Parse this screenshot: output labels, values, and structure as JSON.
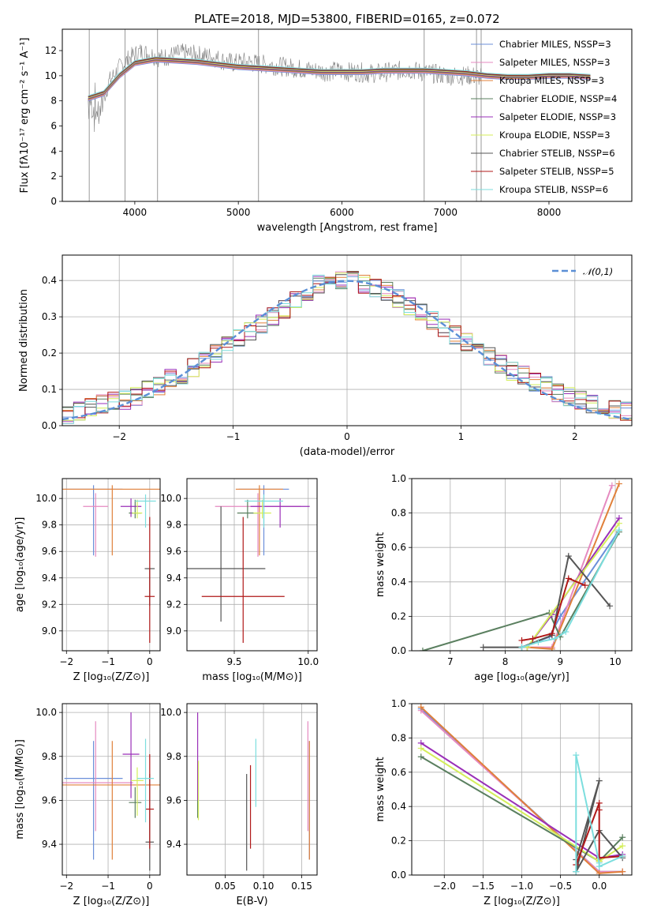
{
  "chart_data": [
    {
      "id": "spectrum",
      "type": "line",
      "title": "PLATE=2018, MJD=53800, FIBERID=0165, z=0.072",
      "xlabel": "wavelength [Angstrom, rest frame]",
      "ylabel": "Flux [fλ10⁻¹⁷ erg cm⁻² s⁻¹ A⁻¹]",
      "xlim": [
        3300,
        8800
      ],
      "ylim": [
        0,
        13.7
      ],
      "xticks": [
        4000,
        5000,
        6000,
        7000,
        8000
      ],
      "yticks": [
        0,
        2,
        4,
        6,
        8,
        10,
        12
      ],
      "grid": false,
      "legend_position": "right",
      "observed_data": {
        "x": [
          3550,
          3650,
          3750,
          3850,
          3950,
          4050,
          4150,
          4250,
          4350,
          4450,
          4550,
          4650,
          4750,
          4850,
          4950,
          5050,
          5150,
          5250,
          5350,
          5450,
          5550,
          5650,
          5750,
          5850,
          5950,
          6050,
          6150,
          6250,
          6350,
          6450,
          6550,
          6650,
          6750,
          6850,
          6950,
          7050,
          7150,
          7250,
          7350
        ],
        "y": [
          8.0,
          7.0,
          9.5,
          10.6,
          11.4,
          11.9,
          11.7,
          11.4,
          11.6,
          11.8,
          11.7,
          11.6,
          11.5,
          11.2,
          11.0,
          11.1,
          11.0,
          10.9,
          10.8,
          10.7,
          10.6,
          10.5,
          10.4,
          10.3,
          10.4,
          10.3,
          10.3,
          10.2,
          10.2,
          10.3,
          10.4,
          10.5,
          10.3,
          10.2,
          10.1,
          10.0,
          10.0,
          10.0,
          9.9
        ]
      },
      "model_x": [
        3550,
        3700,
        3850,
        4000,
        4200,
        4400,
        4600,
        4800,
        5000,
        5200,
        5400,
        5600,
        5800,
        6000,
        6200,
        6400,
        6600,
        6800,
        7000,
        7200,
        7400,
        7600,
        7800,
        8000,
        8200,
        8400
      ],
      "series": [
        {
          "name": "Chabrier MILES, N_SSP=3",
          "color": "#6b8fd9"
        },
        {
          "name": "Salpeter MILES, N_SSP=3",
          "color": "#e58ac0"
        },
        {
          "name": "Kroupa MILES, N_SSP=3",
          "color": "#e0803a"
        },
        {
          "name": "Chabrier ELODIE, N_SSP=4",
          "color": "#5a7f5f"
        },
        {
          "name": "Salpeter ELODIE, N_SSP=3",
          "color": "#9a2fb8"
        },
        {
          "name": "Kroupa ELODIE, N_SSP=3",
          "color": "#d4ee5a"
        },
        {
          "name": "Chabrier STELIB, N_SSP=6",
          "color": "#555555"
        },
        {
          "name": "Salpeter STELIB, N_SSP=5",
          "color": "#b01818"
        },
        {
          "name": "Kroupa STELIB, N_SSP=6",
          "color": "#7cdede"
        }
      ],
      "model_y": [
        8.2,
        8.6,
        10.0,
        11.0,
        11.3,
        11.2,
        11.1,
        10.9,
        10.7,
        10.6,
        10.5,
        10.4,
        10.3,
        10.3,
        10.3,
        10.4,
        10.4,
        10.4,
        10.3,
        10.2,
        10.0,
        9.9,
        9.9,
        10.0,
        10.0,
        9.9
      ]
    },
    {
      "id": "residuals",
      "type": "histogram",
      "xlabel": "(data-model)/error",
      "ylabel": "Normed distribution",
      "xlim": [
        -2.5,
        2.5
      ],
      "ylim": [
        0,
        0.47
      ],
      "xticks": [
        -2,
        -1,
        0,
        1,
        2
      ],
      "yticks": [
        0.0,
        0.1,
        0.2,
        0.3,
        0.4
      ],
      "grid": true,
      "legend": [
        "𝒩(0,1)"
      ],
      "legend_position": "top-right",
      "bin_edges": [
        -2.5,
        -2.4,
        -2.3,
        -2.2,
        -2.1,
        -2.0,
        -1.9,
        -1.8,
        -1.7,
        -1.6,
        -1.5,
        -1.4,
        -1.3,
        -1.2,
        -1.1,
        -1.0,
        -0.9,
        -0.8,
        -0.7,
        -0.6,
        -0.5,
        -0.4,
        -0.3,
        -0.2,
        -0.1,
        0.0,
        0.1,
        0.2,
        0.3,
        0.4,
        0.5,
        0.6,
        0.7,
        0.8,
        0.9,
        1.0,
        1.1,
        1.2,
        1.3,
        1.4,
        1.5,
        1.6,
        1.7,
        1.8,
        1.9,
        2.0,
        2.1,
        2.2,
        2.3,
        2.4,
        2.5
      ],
      "base_density": [
        0.03,
        0.04,
        0.05,
        0.06,
        0.07,
        0.07,
        0.08,
        0.1,
        0.11,
        0.13,
        0.14,
        0.16,
        0.18,
        0.2,
        0.22,
        0.24,
        0.26,
        0.28,
        0.3,
        0.32,
        0.35,
        0.37,
        0.39,
        0.4,
        0.4,
        0.4,
        0.39,
        0.38,
        0.37,
        0.35,
        0.33,
        0.31,
        0.29,
        0.27,
        0.25,
        0.23,
        0.21,
        0.19,
        0.17,
        0.15,
        0.14,
        0.12,
        0.11,
        0.09,
        0.08,
        0.07,
        0.06,
        0.05,
        0.045,
        0.04
      ],
      "series_colors": [
        "#6b8fd9",
        "#e58ac0",
        "#e0803a",
        "#5a7f5f",
        "#9a2fb8",
        "#d4ee5a",
        "#555555",
        "#b01818",
        "#7cdede"
      ],
      "normal_curve_color": "#5b8fd6"
    },
    {
      "id": "age-vs-Z",
      "type": "errorbar",
      "xlabel": "Z [log₁₀(Z/Z⊙)]",
      "ylabel": "age  [log₁₀(age/yr)]",
      "xlim": [
        -2.1,
        0.25
      ],
      "ylim": [
        8.85,
        10.15
      ],
      "xticks": [
        -2,
        -1,
        0
      ],
      "yticks": [
        9.0,
        9.2,
        9.4,
        9.6,
        9.8,
        10.0
      ],
      "grid": true,
      "points": [
        {
          "x": -1.35,
          "y": 10.07,
          "xerr": 0.7,
          "yerr": [
            0.5,
            0.03
          ],
          "color": "#6b8fd9"
        },
        {
          "x": -1.3,
          "y": 9.94,
          "xerr": 0.3,
          "yerr": [
            0.38,
            0.1
          ],
          "color": "#e58ac0"
        },
        {
          "x": -0.9,
          "y": 10.07,
          "xerr": 1.2,
          "yerr": [
            0.5,
            0.03
          ],
          "color": "#e0803a"
        },
        {
          "x": -0.35,
          "y": 9.89,
          "xerr": 0.15,
          "yerr": [
            0.04,
            0.1
          ],
          "color": "#5a7f5f"
        },
        {
          "x": -0.45,
          "y": 9.94,
          "xerr": 0.25,
          "yerr": [
            0.08,
            0.06
          ],
          "color": "#9a2fb8"
        },
        {
          "x": -0.3,
          "y": 9.89,
          "xerr": 0.12,
          "yerr": [
            0.04,
            0.1
          ],
          "color": "#d4ee5a"
        },
        {
          "x": 0.0,
          "y": 9.47,
          "xerr": 0.12,
          "yerr": [
            0.28,
            0.0
          ],
          "color": "#555555"
        },
        {
          "x": 0.0,
          "y": 9.26,
          "xerr": 0.12,
          "yerr": [
            0.35,
            0.6
          ],
          "color": "#b01818"
        },
        {
          "x": -0.1,
          "y": 9.98,
          "xerr": 0.25,
          "yerr": [
            0.2,
            0.05
          ],
          "color": "#7cdede"
        }
      ]
    },
    {
      "id": "age-vs-mass",
      "type": "errorbar",
      "xlabel": "mass [log₁₀(M/M⊙)]",
      "ylabel": "",
      "xlim": [
        9.18,
        10.06
      ],
      "ylim": [
        8.85,
        10.15
      ],
      "xticks": [
        9.5,
        10.0
      ],
      "yticks": [
        9.0,
        9.2,
        9.4,
        9.6,
        9.8,
        10.0
      ],
      "grid": true,
      "points": [
        {
          "x": 9.7,
          "y": 10.07,
          "xerr": 0.17,
          "yerr": [
            0.5,
            0.03
          ],
          "color": "#6b8fd9"
        },
        {
          "x": 9.66,
          "y": 9.94,
          "xerr": 0.29,
          "yerr": [
            0.38,
            0.1
          ],
          "color": "#e58ac0"
        },
        {
          "x": 9.67,
          "y": 10.07,
          "xerr": 0.16,
          "yerr": [
            0.5,
            0.03
          ],
          "color": "#e0803a"
        },
        {
          "x": 9.59,
          "y": 9.89,
          "xerr": 0.07,
          "yerr": [
            0.04,
            0.1
          ],
          "color": "#5a7f5f"
        },
        {
          "x": 9.81,
          "y": 9.94,
          "xerr": 0.2,
          "yerr": [
            0.16,
            0.06
          ],
          "color": "#9a2fb8"
        },
        {
          "x": 9.69,
          "y": 9.89,
          "xerr": 0.06,
          "yerr": [
            0.04,
            0.1
          ],
          "color": "#d4ee5a"
        },
        {
          "x": 9.41,
          "y": 9.47,
          "xerr": 0.3,
          "yerr": [
            0.4,
            0.47
          ],
          "color": "#555555"
        },
        {
          "x": 9.56,
          "y": 9.26,
          "xerr": 0.28,
          "yerr": [
            0.35,
            0.6
          ],
          "color": "#b01818"
        },
        {
          "x": 9.7,
          "y": 9.98,
          "xerr": 0.13,
          "yerr": [
            0.2,
            0.05
          ],
          "color": "#7cdede"
        }
      ]
    },
    {
      "id": "mass-weight-vs-age",
      "type": "line",
      "xlabel": "age  [log₁₀(age/yr)]",
      "ylabel": "mass weight",
      "xlim": [
        6.3,
        10.3
      ],
      "ylim": [
        0,
        1.0
      ],
      "xticks": [
        7,
        8,
        9,
        10
      ],
      "yticks": [
        0.0,
        0.2,
        0.4,
        0.6,
        0.8,
        1.0
      ],
      "grid": true,
      "series": [
        {
          "color": "#6b8fd9",
          "x": [
            8.3,
            8.8,
            9.0,
            10.07
          ],
          "y": [
            0.02,
            0.08,
            0.2,
            0.7
          ]
        },
        {
          "color": "#e58ac0",
          "x": [
            8.4,
            8.85,
            9.94
          ],
          "y": [
            0.02,
            0.02,
            0.96
          ]
        },
        {
          "color": "#e0803a",
          "x": [
            8.4,
            8.85,
            10.07
          ],
          "y": [
            0.02,
            0.01,
            0.97
          ]
        },
        {
          "color": "#5a7f5f",
          "x": [
            6.5,
            8.8,
            9.0,
            10.07
          ],
          "y": [
            0.0,
            0.22,
            0.08,
            0.69
          ]
        },
        {
          "color": "#9a2fb8",
          "x": [
            8.4,
            8.85,
            10.07
          ],
          "y": [
            0.02,
            0.21,
            0.77
          ]
        },
        {
          "color": "#d4ee5a",
          "x": [
            8.4,
            8.85,
            10.07
          ],
          "y": [
            0.02,
            0.22,
            0.74
          ]
        },
        {
          "color": "#555555",
          "x": [
            7.6,
            8.3,
            8.85,
            9.15,
            9.9
          ],
          "y": [
            0.02,
            0.02,
            0.09,
            0.55,
            0.26
          ]
        },
        {
          "color": "#b01818",
          "x": [
            8.3,
            8.5,
            8.85,
            9.15,
            9.45
          ],
          "y": [
            0.06,
            0.07,
            0.1,
            0.42,
            0.38
          ]
        },
        {
          "color": "#7cdede",
          "x": [
            8.3,
            8.6,
            8.9,
            9.1,
            10.07
          ],
          "y": [
            0.02,
            0.05,
            0.07,
            0.11,
            0.7
          ]
        }
      ]
    },
    {
      "id": "mass-vs-Z",
      "type": "errorbar",
      "xlabel": "Z [log₁₀(Z/Z⊙)]",
      "ylabel": "mass [log₁₀(M/M⊙)]",
      "xlim": [
        -2.1,
        0.25
      ],
      "ylim": [
        9.26,
        10.04
      ],
      "xticks": [
        -2,
        -1,
        0
      ],
      "yticks": [
        9.4,
        9.6,
        9.8,
        10.0
      ],
      "grid": true,
      "points": [
        {
          "x": -1.35,
          "y": 9.7,
          "xerr": 0.7,
          "yerr": [
            0.37,
            0.17
          ],
          "color": "#6b8fd9"
        },
        {
          "x": -1.3,
          "y": 9.68,
          "xerr": 0.9,
          "yerr": [
            0.22,
            0.28
          ],
          "color": "#e58ac0"
        },
        {
          "x": -0.9,
          "y": 9.67,
          "xerr": 1.2,
          "yerr": [
            0.34,
            0.2
          ],
          "color": "#e0803a"
        },
        {
          "x": -0.35,
          "y": 9.59,
          "xerr": 0.15,
          "yerr": [
            0.07,
            0.07
          ],
          "color": "#5a7f5f"
        },
        {
          "x": -0.45,
          "y": 9.81,
          "xerr": 0.2,
          "yerr": [
            0.2,
            0.19
          ],
          "color": "#9a2fb8"
        },
        {
          "x": -0.3,
          "y": 9.69,
          "xerr": 0.15,
          "yerr": [
            0.16,
            0.06
          ],
          "color": "#d4ee5a"
        },
        {
          "x": 0.0,
          "y": 9.41,
          "xerr": 0.1,
          "yerr": [
            0.13,
            0.31
          ],
          "color": "#555555"
        },
        {
          "x": 0.0,
          "y": 9.56,
          "xerr": 0.1,
          "yerr": [
            0.18,
            0.25
          ],
          "color": "#b01818"
        },
        {
          "x": -0.1,
          "y": 9.7,
          "xerr": 0.2,
          "yerr": [
            0.2,
            0.18
          ],
          "color": "#7cdede"
        }
      ]
    },
    {
      "id": "mass-vs-EBV",
      "type": "errorbar",
      "xlabel": "E(B-V)",
      "ylabel": "",
      "xlim": [
        0.0,
        0.17
      ],
      "ylim": [
        9.26,
        10.04
      ],
      "xticks": [
        0.05,
        0.1,
        0.15
      ],
      "yticks": [
        9.4,
        9.6,
        9.8,
        10.0
      ],
      "grid": true,
      "points": [
        {
          "x": 0.16,
          "y": 9.7,
          "yerr": [
            0.37,
            0.17
          ],
          "color": "#6b8fd9"
        },
        {
          "x": 0.158,
          "y": 9.68,
          "yerr": [
            0.22,
            0.28
          ],
          "color": "#e58ac0"
        },
        {
          "x": 0.16,
          "y": 9.67,
          "yerr": [
            0.34,
            0.2
          ],
          "color": "#e0803a"
        },
        {
          "x": 0.014,
          "y": 9.59,
          "yerr": [
            0.07,
            0.07
          ],
          "color": "#5a7f5f"
        },
        {
          "x": 0.014,
          "y": 9.8,
          "yerr": [
            0.2,
            0.2
          ],
          "color": "#9a2fb8"
        },
        {
          "x": 0.015,
          "y": 9.65,
          "yerr": [
            0.14,
            0.13
          ],
          "color": "#d4ee5a"
        },
        {
          "x": 0.078,
          "y": 9.5,
          "yerr": [
            0.22,
            0.22
          ],
          "color": "#555555"
        },
        {
          "x": 0.083,
          "y": 9.51,
          "yerr": [
            0.13,
            0.25
          ],
          "color": "#b01818"
        },
        {
          "x": 0.09,
          "y": 9.73,
          "yerr": [
            0.16,
            0.15
          ],
          "color": "#7cdede"
        }
      ]
    },
    {
      "id": "mass-weight-vs-Z",
      "type": "line",
      "xlabel": "Z [log₁₀(Z/Z⊙)]",
      "ylabel": "mass weight",
      "xlim": [
        -2.42,
        0.42
      ],
      "ylim": [
        0,
        1.0
      ],
      "xticks": [
        -2.0,
        -1.5,
        -1.0,
        -0.5,
        0.0
      ],
      "yticks": [
        0.0,
        0.2,
        0.4,
        0.6,
        0.8,
        1.0
      ],
      "grid": true,
      "series": [
        {
          "color": "#6b8fd9",
          "x": [
            -2.3,
            0.0,
            0.3
          ],
          "y": [
            0.97,
            0.02,
            0.02
          ]
        },
        {
          "color": "#e58ac0",
          "x": [
            -2.3,
            0.0,
            0.3
          ],
          "y": [
            0.96,
            0.02,
            0.02
          ]
        },
        {
          "color": "#e0803a",
          "x": [
            -2.3,
            0.0,
            0.3
          ],
          "y": [
            0.98,
            0.01,
            0.02
          ]
        },
        {
          "color": "#5a7f5f",
          "x": [
            -2.3,
            0.0,
            0.3
          ],
          "y": [
            0.69,
            0.08,
            0.22
          ]
        },
        {
          "color": "#9a2fb8",
          "x": [
            -2.3,
            0.0,
            0.3
          ],
          "y": [
            0.77,
            0.1,
            0.12
          ]
        },
        {
          "color": "#d4ee5a",
          "x": [
            -2.3,
            0.0,
            0.3
          ],
          "y": [
            0.74,
            0.08,
            0.17
          ]
        },
        {
          "color": "#555555",
          "x": [
            -0.3,
            0.0,
            -0.3,
            0.0,
            0.3
          ],
          "y": [
            0.09,
            0.55,
            0.02,
            0.26,
            0.1
          ]
        },
        {
          "color": "#b01818",
          "x": [
            -0.3,
            0.0,
            0.0,
            0.0,
            0.3
          ],
          "y": [
            0.06,
            0.42,
            0.38,
            0.1,
            0.11
          ]
        },
        {
          "color": "#7cdede",
          "x": [
            -0.3,
            -0.3,
            0.0,
            0.0,
            0.3
          ],
          "y": [
            0.02,
            0.7,
            0.07,
            0.05,
            0.11
          ]
        }
      ]
    }
  ]
}
